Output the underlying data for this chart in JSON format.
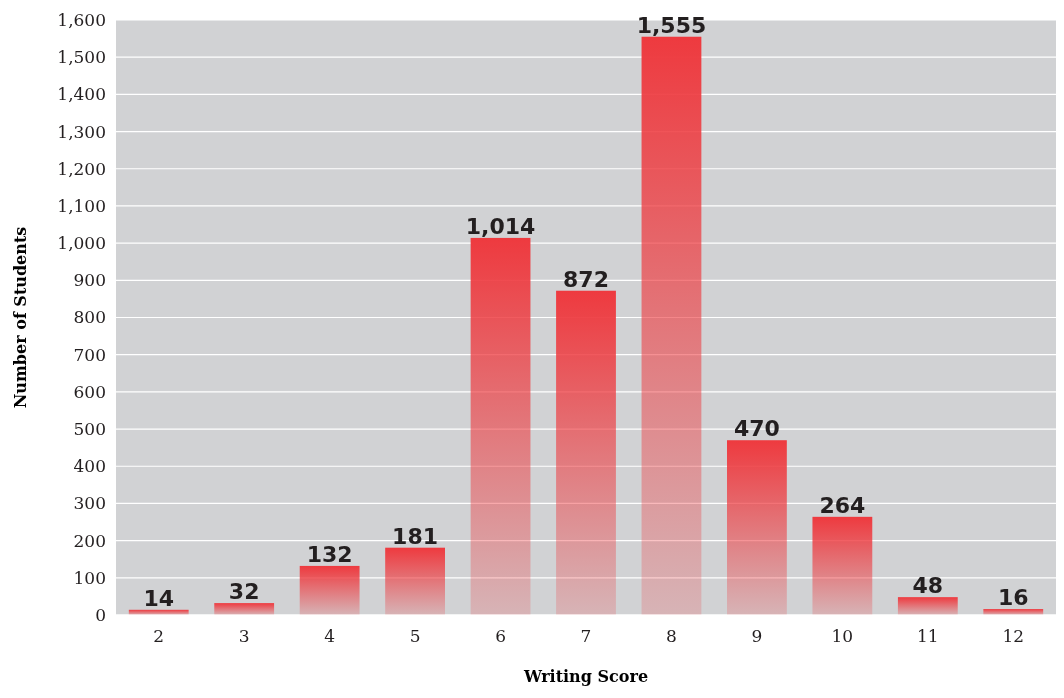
{
  "chart_data": {
    "type": "bar",
    "xlabel": "Writing Score",
    "ylabel": "Number of Students",
    "categories": [
      "2",
      "3",
      "4",
      "5",
      "6",
      "7",
      "8",
      "9",
      "10",
      "11",
      "12"
    ],
    "values": [
      14,
      32,
      132,
      181,
      1014,
      872,
      1555,
      470,
      264,
      48,
      16
    ],
    "value_labels": [
      "14",
      "32",
      "132",
      "181",
      "1,014",
      "872",
      "1,555",
      "470",
      "264",
      "48",
      "16"
    ],
    "color": "#ee3a3f",
    "ylim": [
      0,
      1600
    ],
    "yticks": [
      0,
      100,
      200,
      300,
      400,
      500,
      600,
      700,
      800,
      900,
      {
        "value": 1000,
        "label": "1,000"
      },
      {
        "value": 1100,
        "label": "1,100"
      },
      {
        "value": 1200,
        "label": "1,200"
      },
      {
        "value": 1300,
        "label": "1,300"
      },
      {
        "value": 1400,
        "label": "1,400"
      },
      {
        "value": 1500,
        "label": "1,500"
      },
      {
        "value": 1600,
        "label": "1,600"
      }
    ],
    "grid": "y"
  }
}
